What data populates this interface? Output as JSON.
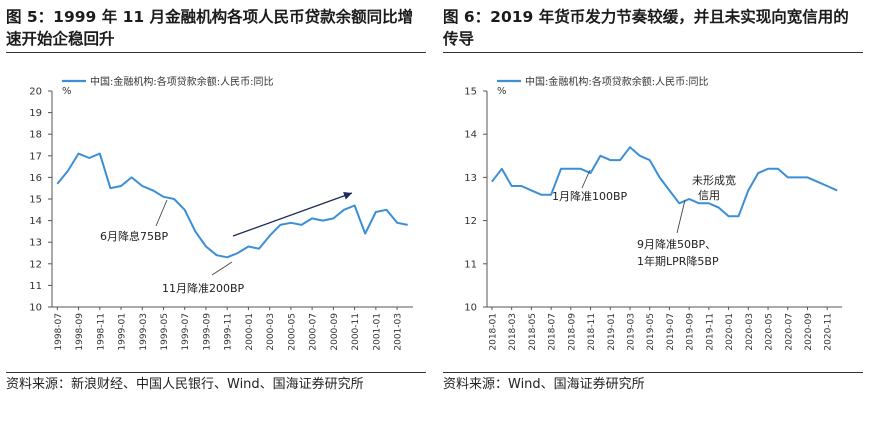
{
  "figures": [
    {
      "title": "图 5：1999 年 11 月金融机构各项人民币贷款余额同比增速开始企稳回升",
      "source": "资料来源：新浪财经、中国人民银行、Wind、国海证券研究所"
    },
    {
      "title": "图 6：2019 年货币发力节奏较缓，并且未实现向宽信用的传导",
      "source": "资料来源：Wind、国海证券研究所"
    }
  ],
  "chart_data": [
    {
      "type": "line",
      "title": "",
      "ylabel": "%",
      "ylim": [
        10,
        20
      ],
      "yticks": [
        10,
        11,
        12,
        13,
        14,
        15,
        16,
        17,
        18,
        19,
        20
      ],
      "legend": "top-left",
      "grid": false,
      "x": [
        "1998-07",
        "1998-08",
        "1998-09",
        "1998-10",
        "1998-11",
        "1998-12",
        "1999-01",
        "1999-02",
        "1999-03",
        "1999-04",
        "1999-05",
        "1999-06",
        "1999-07",
        "1999-08",
        "1999-09",
        "1999-10",
        "1999-11",
        "1999-12",
        "2000-01",
        "2000-02",
        "2000-03",
        "2000-04",
        "2000-05",
        "2000-06",
        "2000-07",
        "2000-08",
        "2000-09",
        "2000-10",
        "2000-11",
        "2000-12",
        "2001-01",
        "2001-02",
        "2001-03",
        "2001-04"
      ],
      "xtick_labels": [
        "1998-07",
        "1998-09",
        "1998-11",
        "1999-01",
        "1999-03",
        "1999-05",
        "1999-07",
        "1999-09",
        "1999-11",
        "2000-01",
        "2000-03",
        "2000-05",
        "2000-07",
        "2000-09",
        "2000-11",
        "2001-01",
        "2001-03"
      ],
      "series": [
        {
          "name": "中国:金融机构:各项贷款余额:人民币:同比",
          "color": "#3a8fd6",
          "values": [
            15.7,
            16.3,
            17.1,
            16.9,
            17.1,
            15.5,
            15.6,
            16.0,
            15.6,
            15.4,
            15.1,
            15.0,
            14.5,
            13.5,
            12.8,
            12.4,
            12.3,
            12.5,
            12.8,
            12.7,
            13.3,
            13.8,
            13.9,
            13.8,
            14.1,
            14.0,
            14.1,
            14.5,
            14.7,
            13.4,
            14.4,
            14.5,
            13.9,
            13.8
          ]
        }
      ],
      "annotations": [
        {
          "text": "6月降息75BP"
        },
        {
          "text": "11月降准200BP"
        }
      ]
    },
    {
      "type": "line",
      "title": "",
      "ylabel": "%",
      "ylim": [
        10,
        15
      ],
      "yticks": [
        10,
        11,
        12,
        13,
        14,
        15
      ],
      "legend": "top-left",
      "grid": false,
      "x": [
        "2018-01",
        "2018-02",
        "2018-03",
        "2018-04",
        "2018-05",
        "2018-06",
        "2018-07",
        "2018-08",
        "2018-09",
        "2018-10",
        "2018-11",
        "2018-12",
        "2019-01",
        "2019-02",
        "2019-03",
        "2019-04",
        "2019-05",
        "2019-06",
        "2019-07",
        "2019-08",
        "2019-09",
        "2019-10",
        "2019-11",
        "2019-12",
        "2020-01",
        "2020-02",
        "2020-03",
        "2020-04",
        "2020-05",
        "2020-06",
        "2020-07",
        "2020-08",
        "2020-09",
        "2020-10",
        "2020-11",
        "2020-12"
      ],
      "xtick_labels": [
        "2018-01",
        "2018-03",
        "2018-05",
        "2018-07",
        "2018-09",
        "2018-11",
        "2019-01",
        "2019-03",
        "2019-05",
        "2019-07",
        "2019-09",
        "2019-11",
        "2020-01",
        "2020-03",
        "2020-05",
        "2020-07",
        "2020-09",
        "2020-11"
      ],
      "series": [
        {
          "name": "中国:金融机构:各项贷款余额:人民币:同比",
          "color": "#3a8fd6",
          "values": [
            12.9,
            13.2,
            12.8,
            12.8,
            12.7,
            12.6,
            12.6,
            13.2,
            13.2,
            13.2,
            13.1,
            13.5,
            13.4,
            13.4,
            13.7,
            13.5,
            13.4,
            13.0,
            12.7,
            12.4,
            12.5,
            12.4,
            12.4,
            12.3,
            12.1,
            12.1,
            12.7,
            13.1,
            13.2,
            13.2,
            13.0,
            13.0,
            13.0,
            12.9,
            12.8,
            12.7
          ]
        }
      ],
      "annotations": [
        {
          "text": "1月降准100BP"
        },
        {
          "text": "未形成宽信用"
        },
        {
          "text": "9月降准50BP、"
        },
        {
          "text": "1年期LPR降5BP"
        }
      ]
    }
  ]
}
